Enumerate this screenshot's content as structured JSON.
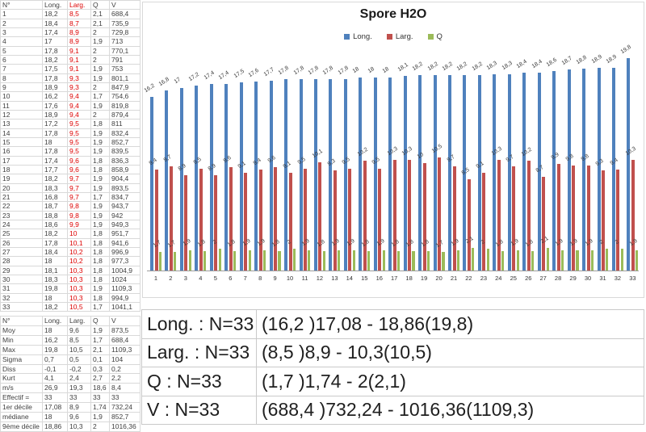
{
  "data_table": {
    "headers": [
      "N°",
      "Long.",
      "Larg.",
      "Q",
      "V"
    ],
    "highlight_column": "Larg.",
    "highlight_color": "#dd0000",
    "rows": [
      [
        "1",
        "18,2",
        "8,5",
        "2,1",
        "688,4"
      ],
      [
        "2",
        "18,4",
        "8,7",
        "2,1",
        "735,9"
      ],
      [
        "3",
        "17,4",
        "8,9",
        "2",
        "729,8"
      ],
      [
        "4",
        "17",
        "8,9",
        "1,9",
        "713"
      ],
      [
        "5",
        "17,8",
        "9,1",
        "2",
        "770,1"
      ],
      [
        "6",
        "18,2",
        "9,1",
        "2",
        "791"
      ],
      [
        "7",
        "17,5",
        "9,1",
        "1,9",
        "753"
      ],
      [
        "8",
        "17,8",
        "9,3",
        "1,9",
        "801,1"
      ],
      [
        "9",
        "18,9",
        "9,3",
        "2",
        "847,9"
      ],
      [
        "10",
        "16,2",
        "9,4",
        "1,7",
        "754,6"
      ],
      [
        "11",
        "17,6",
        "9,4",
        "1,9",
        "819,8"
      ],
      [
        "12",
        "18,9",
        "9,4",
        "2",
        "879,4"
      ],
      [
        "13",
        "17,2",
        "9,5",
        "1,8",
        "811"
      ],
      [
        "14",
        "17,8",
        "9,5",
        "1,9",
        "832,4"
      ],
      [
        "15",
        "18",
        "9,5",
        "1,9",
        "852,7"
      ],
      [
        "16",
        "17,8",
        "9,5",
        "1,9",
        "839,5"
      ],
      [
        "17",
        "17,4",
        "9,6",
        "1,8",
        "836,3"
      ],
      [
        "18",
        "17,7",
        "9,6",
        "1,8",
        "858,9"
      ],
      [
        "19",
        "18,2",
        "9,7",
        "1,9",
        "904,4"
      ],
      [
        "20",
        "18,3",
        "9,7",
        "1,9",
        "893,5"
      ],
      [
        "21",
        "16,8",
        "9,7",
        "1,7",
        "834,7"
      ],
      [
        "22",
        "18,7",
        "9,8",
        "1,9",
        "943,7"
      ],
      [
        "23",
        "18,8",
        "9,8",
        "1,9",
        "942"
      ],
      [
        "24",
        "18,6",
        "9,9",
        "1,9",
        "949,3"
      ],
      [
        "25",
        "18,2",
        "10",
        "1,8",
        "951,7"
      ],
      [
        "26",
        "17,8",
        "10,1",
        "1,8",
        "941,6"
      ],
      [
        "27",
        "18,4",
        "10,2",
        "1,8",
        "996,9"
      ],
      [
        "28",
        "18",
        "10,2",
        "1,8",
        "977,3"
      ],
      [
        "29",
        "18,1",
        "10,3",
        "1,8",
        "1004,9"
      ],
      [
        "30",
        "18,3",
        "10,3",
        "1,8",
        "1024"
      ],
      [
        "31",
        "19,8",
        "10,3",
        "1,9",
        "1109,3"
      ],
      [
        "32",
        "18",
        "10,3",
        "1,8",
        "994,9"
      ],
      [
        "33",
        "18,2",
        "10,5",
        "1,7",
        "1041,1"
      ]
    ]
  },
  "stats_table": {
    "headers": [
      "N°",
      "Long.",
      "Larg.",
      "Q",
      "V"
    ],
    "rows": [
      [
        "Moy",
        "18",
        "9,6",
        "1,9",
        "873,5"
      ],
      [
        "Min",
        "16,2",
        "8,5",
        "1,7",
        "688,4"
      ],
      [
        "Max",
        "19,8",
        "10,5",
        "2,1",
        "1109,3"
      ],
      [
        "Sigma",
        "0,7",
        "0,5",
        "0,1",
        "104"
      ],
      [
        "Diss",
        "-0,1",
        "-0,2",
        "0,3",
        "0,2"
      ],
      [
        "Kurt",
        "4,1",
        "2,4",
        "2,7",
        "2,2"
      ],
      [
        "m/s",
        "26,9",
        "19,3",
        "18,6",
        "8,4"
      ],
      [
        "Effectif =",
        "33",
        "33",
        "33",
        "33"
      ],
      [
        "1er décile",
        "17,08",
        "8,9",
        "1,74",
        "732,24"
      ],
      [
        "médiane",
        "18",
        "9,6",
        "1,9",
        "852,7"
      ],
      [
        "9ème décile",
        "18,86",
        "10,3",
        "2",
        "1016,36"
      ]
    ]
  },
  "summary_panel": {
    "rows": [
      {
        "label": "Long. : N=33",
        "value": "(16,2 )17,08 - 18,86(19,8)"
      },
      {
        "label": "Larg. : N=33",
        "value": "(8,5 )8,9 - 10,3(10,5)"
      },
      {
        "label": "Q : N=33",
        "value": "(1,7 )1,74 - 2(2,1)"
      },
      {
        "label": "V : N=33",
        "value": "(688,4 )732,24 - 1016,36(1109,3)"
      }
    ]
  },
  "chart_data": {
    "type": "bar",
    "title": "Spore H2O",
    "legend_position": "top",
    "grid": false,
    "ylim": [
      0,
      20
    ],
    "decimal_separator": ",",
    "categories": [
      "1",
      "2",
      "3",
      "4",
      "5",
      "6",
      "7",
      "8",
      "9",
      "10",
      "11",
      "12",
      "13",
      "14",
      "15",
      "16",
      "17",
      "18",
      "19",
      "20",
      "21",
      "22",
      "23",
      "24",
      "25",
      "26",
      "27",
      "28",
      "29",
      "30",
      "31",
      "32",
      "33"
    ],
    "series": [
      {
        "name": "Long.",
        "color": "#4f81bd",
        "values": [
          16.2,
          16.8,
          17,
          17.2,
          17.4,
          17.4,
          17.5,
          17.6,
          17.7,
          17.8,
          17.8,
          17.8,
          17.8,
          17.8,
          18,
          18,
          18,
          18.1,
          18.2,
          18.2,
          18.2,
          18.2,
          18.2,
          18.3,
          18.3,
          18.4,
          18.4,
          18.6,
          18.7,
          18.8,
          18.9,
          18.9,
          19.8
        ]
      },
      {
        "name": "Larg.",
        "color": "#c0504d",
        "values": [
          9.4,
          9.7,
          8.9,
          9.5,
          8.9,
          9.6,
          9.1,
          9.4,
          9.6,
          9.1,
          9.5,
          10.1,
          9.3,
          9.5,
          10.2,
          9.5,
          10.3,
          10.3,
          10,
          10.5,
          9.7,
          8.5,
          9.1,
          10.3,
          9.7,
          10.2,
          8.7,
          9.9,
          9.8,
          9.8,
          9.3,
          9.4,
          10.3
        ]
      },
      {
        "name": "Q",
        "color": "#9bbb59",
        "values": [
          1.7,
          1.7,
          1.9,
          1.8,
          2,
          1.8,
          1.9,
          1.9,
          1.8,
          2,
          1.9,
          1.8,
          1.9,
          1.9,
          1.8,
          1.9,
          1.8,
          1.8,
          1.8,
          1.7,
          1.9,
          2.1,
          2,
          1.8,
          1.9,
          1.8,
          2.1,
          1.9,
          1.9,
          1.9,
          2,
          2,
          1.9
        ]
      }
    ]
  }
}
